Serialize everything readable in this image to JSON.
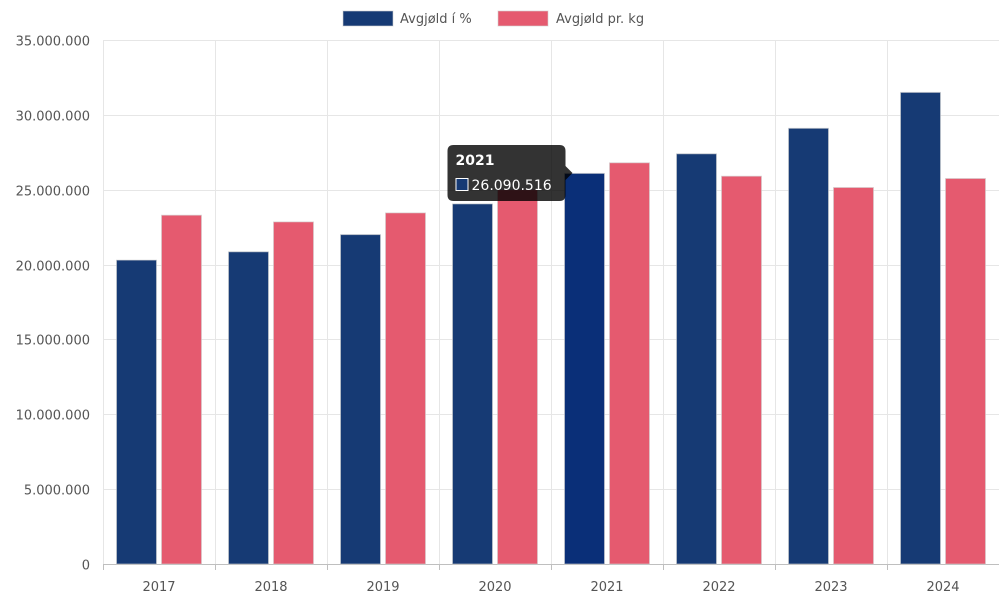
{
  "chart_data": {
    "type": "bar",
    "categories": [
      "2017",
      "2018",
      "2019",
      "2020",
      "2021",
      "2022",
      "2023",
      "2024"
    ],
    "series": [
      {
        "name": "Avgjøld í %",
        "color": "#163a74",
        "highlight_color": "#0a2f78",
        "values": [
          20300000,
          20850000,
          22000000,
          24050000,
          26090516,
          27400000,
          29100000,
          31500000
        ]
      },
      {
        "name": "Avgjøld pr. kg",
        "color": "#e55a6f",
        "values": [
          23300000,
          22850000,
          23450000,
          25000000,
          26800000,
          25900000,
          25150000,
          25750000
        ]
      }
    ],
    "y_ticks": [
      "0",
      "5.000.000",
      "10.000.000",
      "15.000.000",
      "20.000.000",
      "25.000.000",
      "30.000.000",
      "35.000.000"
    ],
    "ylim": [
      0,
      35000000
    ],
    "grid": true,
    "legend_position": "top-center",
    "tooltip": {
      "title": "2021",
      "value": "26.090.516",
      "category": "2021",
      "series": 0
    }
  }
}
